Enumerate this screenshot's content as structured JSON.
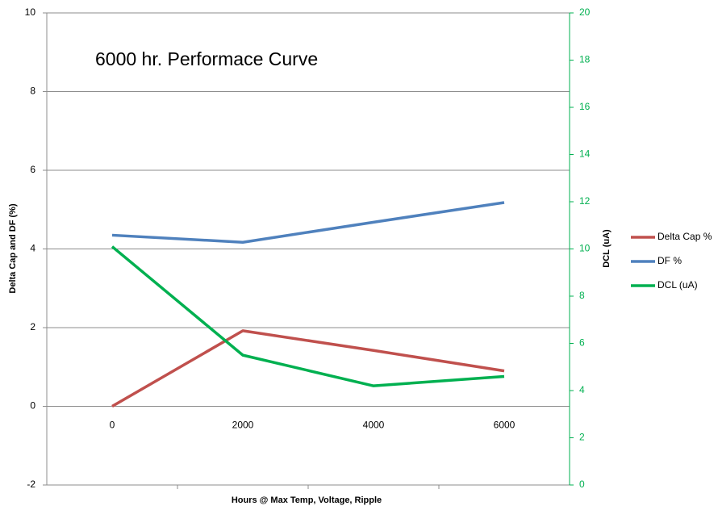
{
  "chart_data": {
    "type": "line",
    "title": "6000 hr. Performace Curve",
    "x_label": "Hours @ Max Temp, Voltage, Ripple",
    "y_label": "Delta Cap and DF (%)",
    "y2_label": "DCL (uA)",
    "categories": [
      "0",
      "2000",
      "4000",
      "6000"
    ],
    "series": [
      {
        "name": "Delta Cap %",
        "color": "#c0504d",
        "values": [
          0,
          1.92,
          1.42,
          0.9
        ]
      },
      {
        "name": "DF %",
        "color": "#4f81bd",
        "values": [
          4.35,
          4.17,
          4.68,
          5.18
        ]
      },
      {
        "name": "DCL (uA)",
        "color": "#00b050",
        "axis": "y2",
        "values": [
          10.1,
          5.5,
          4.2,
          4.6
        ]
      }
    ],
    "ylim": [
      -2,
      10
    ],
    "yticks": [
      -2,
      0,
      2,
      4,
      6,
      8,
      10
    ],
    "y2lim": [
      0,
      20
    ],
    "y2ticks": [
      0,
      2,
      4,
      6,
      8,
      10,
      12,
      14,
      16,
      18,
      20
    ],
    "y2_color": "#00b050",
    "grid": true,
    "legend": "right"
  }
}
